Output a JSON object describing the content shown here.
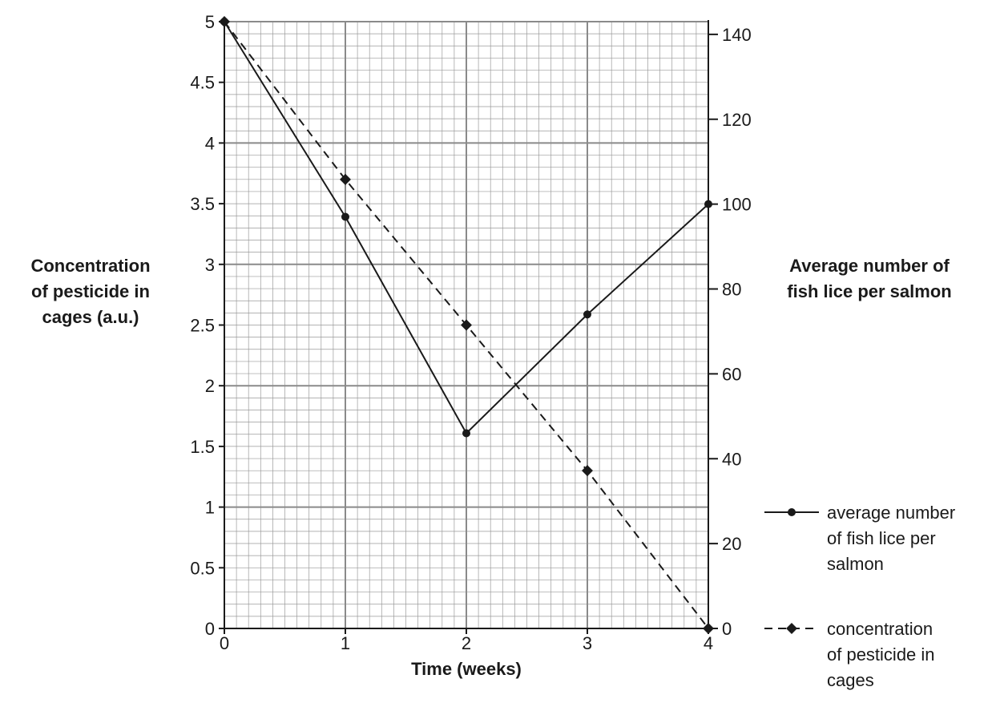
{
  "chart_data": {
    "type": "line",
    "x": [
      0,
      1,
      2,
      3,
      4
    ],
    "xlabel": "Time (weeks)",
    "xlim": [
      0,
      4
    ],
    "xticks": [
      "0",
      "1",
      "2",
      "3",
      "4"
    ],
    "ylabel_left": [
      "Concentration",
      "of pesticide in",
      "cages (a.u.)"
    ],
    "ylim_left": [
      0,
      5
    ],
    "yticks_left": [
      "0",
      "0.5",
      "1",
      "1.5",
      "2",
      "2.5",
      "3",
      "3.5",
      "4",
      "4.5",
      "5"
    ],
    "ylabel_right": [
      "Average number of",
      "fish lice per salmon"
    ],
    "ylim_right": [
      0,
      143
    ],
    "yticks_right": [
      "0",
      "20",
      "40",
      "60",
      "80",
      "100",
      "120",
      "140"
    ],
    "grid": true,
    "legend_position": "right",
    "series": [
      {
        "name": [
          "average number",
          "of fish lice per",
          "salmon"
        ],
        "axis": "right",
        "values": [
          143,
          97,
          46,
          74,
          100
        ],
        "line_style": "solid",
        "marker": "circle",
        "color": "#1a1a1a"
      },
      {
        "name": [
          "concentration",
          "of pesticide in",
          "cages"
        ],
        "axis": "left",
        "values": [
          5,
          3.7,
          2.5,
          1.3,
          0
        ],
        "line_style": "dashed",
        "marker": "diamond",
        "color": "#1a1a1a"
      }
    ]
  }
}
